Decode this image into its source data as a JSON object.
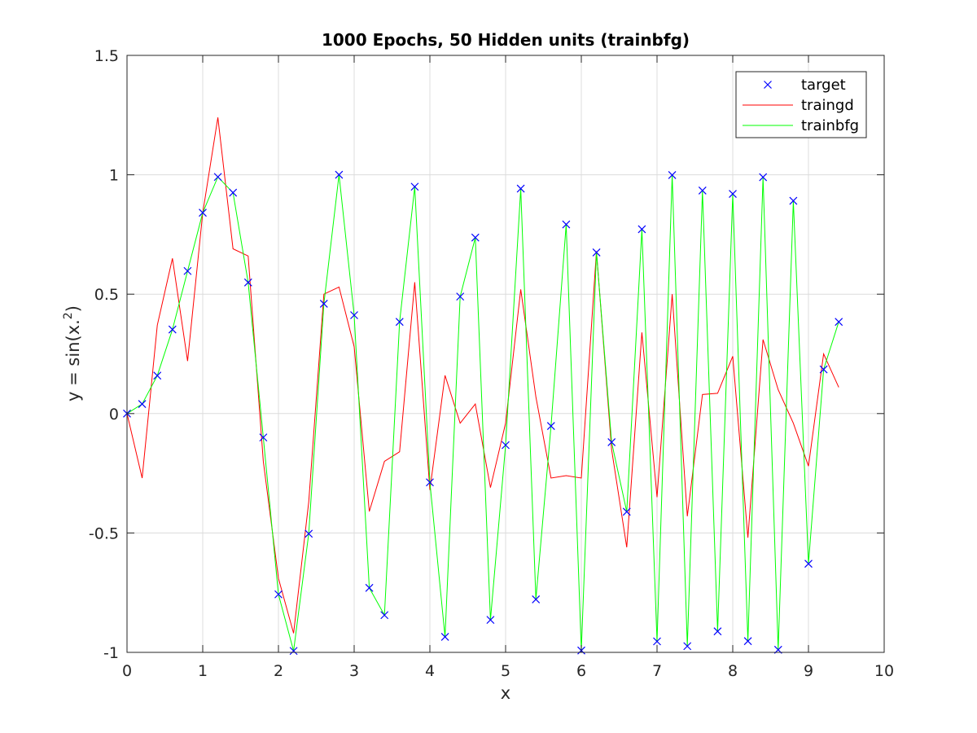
{
  "chart_data": {
    "type": "line",
    "title": "1000 Epochs, 50 Hidden units (trainbfg)",
    "xlabel": "x",
    "ylabel_main": "y = sin(x.",
    "ylabel_sup": "2",
    "ylabel_end": ")",
    "xlim": [
      0,
      10
    ],
    "ylim": [
      -1,
      1.5
    ],
    "xticks": [
      0,
      1,
      2,
      3,
      4,
      5,
      6,
      7,
      8,
      9,
      10
    ],
    "yticks": [
      -1,
      -0.5,
      0,
      0.5,
      1,
      1.5
    ],
    "xtick_labels": [
      "0",
      "1",
      "2",
      "3",
      "4",
      "5",
      "6",
      "7",
      "8",
      "9",
      "10"
    ],
    "ytick_labels": [
      "-1",
      "-0.5",
      "0",
      "0.5",
      "1",
      "1.5"
    ],
    "grid": true,
    "legend_position": "top-right",
    "x": [
      0,
      0.2,
      0.4,
      0.6,
      0.8,
      1.0,
      1.2,
      1.4,
      1.6,
      1.8,
      2.0,
      2.2,
      2.4,
      2.6,
      2.8,
      3.0,
      3.2,
      3.4,
      3.6,
      3.8,
      4.0,
      4.2,
      4.4,
      4.6,
      4.8,
      5.0,
      5.2,
      5.4,
      5.6,
      5.8,
      6.0,
      6.2,
      6.4,
      6.6,
      6.8,
      7.0,
      7.2,
      7.4,
      7.6,
      7.8,
      8.0,
      8.2,
      8.4,
      8.6,
      8.8,
      9.0,
      9.2,
      9.4
    ],
    "series": [
      {
        "name": "target",
        "style": "marker",
        "color": "#0000ff",
        "values": [
          0,
          0.04,
          0.159,
          0.352,
          0.597,
          0.841,
          0.991,
          0.925,
          0.549,
          -0.1,
          -0.757,
          -0.994,
          -0.503,
          0.46,
          1.0,
          0.412,
          -0.73,
          -0.844,
          0.384,
          0.95,
          -0.288,
          -0.935,
          0.49,
          0.737,
          -0.864,
          -0.132,
          0.942,
          -0.778,
          -0.052,
          0.792,
          -0.992,
          0.675,
          -0.12,
          -0.411,
          0.772,
          -0.954,
          0.999,
          -0.974,
          0.934,
          -0.912,
          0.92,
          -0.953,
          0.99,
          -0.989,
          0.891,
          -0.629,
          0.185,
          0.384
        ]
      },
      {
        "name": "traingd",
        "style": "line",
        "color": "#ff0000",
        "values": [
          0,
          -0.27,
          0.37,
          0.65,
          0.22,
          0.84,
          1.24,
          0.69,
          0.66,
          -0.2,
          -0.69,
          -0.92,
          -0.37,
          0.5,
          0.53,
          0.28,
          -0.41,
          -0.2,
          -0.16,
          0.55,
          -0.32,
          0.16,
          -0.04,
          0.04,
          -0.31,
          -0.04,
          0.52,
          0.07,
          -0.27,
          -0.26,
          -0.27,
          0.68,
          -0.15,
          -0.56,
          0.34,
          -0.35,
          0.5,
          -0.43,
          0.08,
          0.085,
          0.24,
          -0.52,
          0.31,
          0.1,
          -0.04,
          -0.22,
          0.25,
          0.11
        ]
      },
      {
        "name": "trainbfg",
        "style": "line",
        "color": "#00ff00",
        "values": [
          0,
          0.04,
          0.159,
          0.352,
          0.597,
          0.841,
          0.991,
          0.925,
          0.549,
          -0.1,
          -0.757,
          -0.994,
          -0.503,
          0.46,
          1.0,
          0.412,
          -0.73,
          -0.844,
          0.384,
          0.95,
          -0.288,
          -0.935,
          0.49,
          0.737,
          -0.864,
          -0.132,
          0.942,
          -0.778,
          -0.052,
          0.792,
          -0.992,
          0.675,
          -0.12,
          -0.411,
          0.772,
          -0.954,
          0.999,
          -0.974,
          0.934,
          -0.912,
          0.92,
          -0.953,
          0.99,
          -0.989,
          0.891,
          -0.629,
          0.185,
          0.384
        ]
      }
    ]
  }
}
